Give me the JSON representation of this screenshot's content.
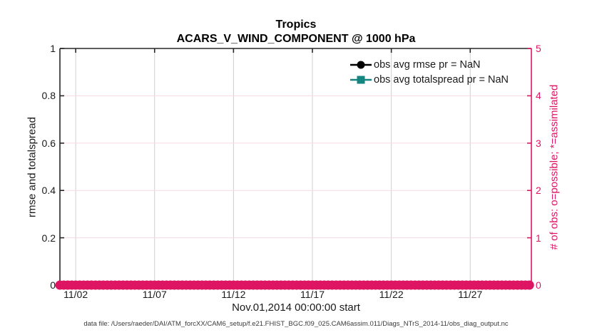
{
  "figure": {
    "title_line1": "Tropics",
    "title_line2": "ACARS_V_WIND_COMPONENT @ 1000 hPa",
    "xlabel": "Nov.01,2014 00:00:00 start",
    "caption": "data file: /Users/raeder/DAI/ATM_forcXX/CAM6_setup/f.e21.FHIST_BGC.f09_025.CAM6assim.011/Diags_NTrS_2014-11/obs_diag_output.nc"
  },
  "left_axis": {
    "label": "rmse and totalspread",
    "tick_labels": [
      "0",
      "0.2",
      "0.4",
      "0.6",
      "0.8",
      "1"
    ],
    "tick_values": [
      0,
      0.2,
      0.4,
      0.6,
      0.8,
      1
    ],
    "range": [
      0,
      1
    ]
  },
  "right_axis": {
    "label": "# of obs: o=possible; *=assimilated",
    "tick_labels": [
      "0",
      "1",
      "2",
      "3",
      "4",
      "5"
    ],
    "tick_values": [
      0,
      1,
      2,
      3,
      4,
      5
    ],
    "range": [
      0,
      5
    ]
  },
  "x_axis": {
    "tick_labels": [
      "11/02",
      "11/07",
      "11/12",
      "11/17",
      "11/22",
      "11/27"
    ],
    "tick_days": [
      2,
      7,
      12,
      17,
      22,
      27
    ],
    "range_days": [
      1,
      30.875
    ]
  },
  "legend": {
    "items": [
      {
        "label": "obs avg rmse pr = NaN",
        "marker": "circle",
        "color": "#000000"
      },
      {
        "label": "obs avg totalspread pr = NaN",
        "marker": "square",
        "color": "#17857f"
      }
    ]
  },
  "colors": {
    "accent_pink": "#de1563",
    "teal": "#17857f",
    "grid_x": "#cfcfcf",
    "grid_y_pink": "#f8d9e6",
    "axis_dark": "#262626",
    "text": "#1a1a1a"
  },
  "chart_data": {
    "type": "line",
    "title": "Tropics — ACARS_V_WIND_COMPONENT @ 1000 hPa",
    "xlabel": "Nov.01,2014 00:00:00 start",
    "x_tick_labels": [
      "11/02",
      "11/07",
      "11/12",
      "11/17",
      "11/22",
      "11/27"
    ],
    "x_axis_days_nov2014": {
      "start": 1.0,
      "end": 30.75,
      "step": 0.25
    },
    "left_ylabel": "rmse and totalspread",
    "left_ylim": [
      0,
      1
    ],
    "right_ylabel": "# of obs: o=possible; *=assimilated",
    "right_ylim": [
      0,
      5
    ],
    "grid": true,
    "legend_position": "upper-right inside, no box",
    "series": [
      {
        "name": "obs avg rmse",
        "axis": "left",
        "marker": "filled circle",
        "color": "#000000",
        "values": "all NaN - no curve plotted"
      },
      {
        "name": "obs avg totalspread",
        "axis": "left",
        "marker": "filled square",
        "color": "#17857f",
        "values": "all NaN - no curve plotted"
      },
      {
        "name": "# of obs possible (o)",
        "axis": "right",
        "marker": "o",
        "color": "#de1563",
        "constant_value": 0
      },
      {
        "name": "# of obs assimilated (*)",
        "axis": "right",
        "marker": "*",
        "color": "#de1563",
        "constant_value": 0
      }
    ]
  }
}
